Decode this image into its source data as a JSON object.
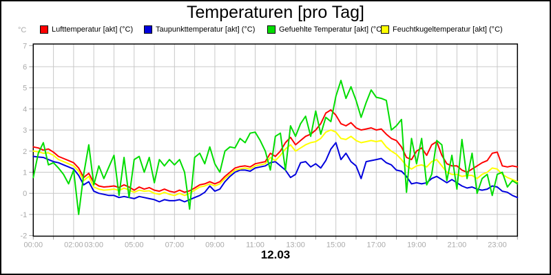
{
  "header": {
    "title": "Temperaturen [pro Tag]"
  },
  "legend": {
    "items": [
      {
        "label": "Lufttemperatur [akt] (°C)",
        "color": "#ff0000"
      },
      {
        "label": "Taupunkttemperatur [akt] (°C)",
        "color": "#0000dd"
      },
      {
        "label": "Gefuehlte Temperatur [akt] (°C)",
        "color": "#00dd00"
      },
      {
        "label": "Feuchtkugeltemperatur [akt] (°C)",
        "color": "#ffff00"
      }
    ]
  },
  "axes": {
    "unit_label": "°C",
    "date_label": "12.03",
    "y_ticks": [
      7,
      6,
      5,
      4,
      3,
      2,
      1,
      0,
      -1,
      -2
    ],
    "x_tick_labels": [
      {
        "hour": 0,
        "label": "00:00"
      },
      {
        "hour": 2,
        "label": "02:00"
      },
      {
        "hour": 3,
        "label": "03:00"
      },
      {
        "hour": 5,
        "label": "05:00"
      },
      {
        "hour": 7,
        "label": "07:00"
      },
      {
        "hour": 9,
        "label": "09:00"
      },
      {
        "hour": 11,
        "label": "11:00"
      },
      {
        "hour": 13,
        "label": "13:00"
      },
      {
        "hour": 15,
        "label": "15:00"
      },
      {
        "hour": 17,
        "label": "17:00"
      },
      {
        "hour": 19,
        "label": "19:00"
      },
      {
        "hour": 21,
        "label": "21:00"
      },
      {
        "hour": 23,
        "label": "23:00"
      }
    ],
    "grid_color": "#c8c8c8",
    "tick_color": "#a0a0a0",
    "label_color": "#a9a9a9",
    "border_color": "#000000"
  },
  "chart_data": {
    "type": "line",
    "title": "Temperaturen [pro Tag]",
    "xlabel": "12.03",
    "ylabel": "°C",
    "xlim_hours": [
      0,
      24
    ],
    "ylim": [
      -2,
      7
    ],
    "grid": true,
    "legend_position": "top",
    "x_start_hour": 0,
    "x_step_hours": 0.25,
    "series": [
      {
        "name": "Lufttemperatur [akt] (°C)",
        "color": "#ff0000",
        "values": [
          2.2,
          2.15,
          2.05,
          2.1,
          1.95,
          1.75,
          1.65,
          1.55,
          1.45,
          1.2,
          0.75,
          0.95,
          0.5,
          0.35,
          0.3,
          0.32,
          0.35,
          0.28,
          0.4,
          0.3,
          0.15,
          0.3,
          0.2,
          0.27,
          0.15,
          0.1,
          0.2,
          0.1,
          0.05,
          0.15,
          0.05,
          0.12,
          0.25,
          0.4,
          0.45,
          0.55,
          0.45,
          0.55,
          0.8,
          1.0,
          1.2,
          1.27,
          1.3,
          1.25,
          1.4,
          1.45,
          1.5,
          1.9,
          1.75,
          2.0,
          2.4,
          2.65,
          2.3,
          2.5,
          2.7,
          2.8,
          3.0,
          3.3,
          3.8,
          3.95,
          3.7,
          3.3,
          3.2,
          3.35,
          3.1,
          3.0,
          3.05,
          3.1,
          3.0,
          3.05,
          2.8,
          2.6,
          2.5,
          2.2,
          1.7,
          1.6,
          2.0,
          2.15,
          1.8,
          2.3,
          2.45,
          1.8,
          1.4,
          1.3,
          1.3,
          1.1,
          1.0,
          1.15,
          1.3,
          1.45,
          1.55,
          1.9,
          1.95,
          1.3,
          1.25,
          1.3,
          1.25
        ]
      },
      {
        "name": "Taupunkttemperatur [akt] (°C)",
        "color": "#0000dd",
        "values": [
          1.75,
          1.72,
          1.7,
          1.6,
          1.5,
          1.45,
          1.35,
          1.25,
          1.15,
          0.85,
          0.4,
          0.55,
          0.1,
          0.0,
          -0.05,
          -0.1,
          -0.1,
          -0.2,
          -0.15,
          -0.2,
          -0.25,
          -0.15,
          -0.2,
          -0.25,
          -0.3,
          -0.4,
          -0.3,
          -0.35,
          -0.35,
          -0.3,
          -0.4,
          -0.3,
          -0.2,
          -0.1,
          0.05,
          0.35,
          0.1,
          0.2,
          0.55,
          0.8,
          1.0,
          1.1,
          1.1,
          1.05,
          1.2,
          1.25,
          1.3,
          1.45,
          1.5,
          1.3,
          1.1,
          0.75,
          0.9,
          1.45,
          1.5,
          1.25,
          1.4,
          1.2,
          1.55,
          2.1,
          2.4,
          1.6,
          1.9,
          1.5,
          1.3,
          0.7,
          1.5,
          1.55,
          1.6,
          1.65,
          1.45,
          1.35,
          1.1,
          1.05,
          0.8,
          0.45,
          0.5,
          0.45,
          0.5,
          0.7,
          0.8,
          0.65,
          0.5,
          0.65,
          0.5,
          0.35,
          0.25,
          0.3,
          0.2,
          0.15,
          0.2,
          0.35,
          0.3,
          0.1,
          0.05,
          -0.1,
          -0.2
        ]
      },
      {
        "name": "Feuchtkugeltemperatur [akt] (°C)",
        "color": "#ffff00",
        "values": [
          2.0,
          1.97,
          1.9,
          1.92,
          1.8,
          1.6,
          1.5,
          1.4,
          1.3,
          1.05,
          0.6,
          0.8,
          0.3,
          0.2,
          0.15,
          0.17,
          0.2,
          0.13,
          0.25,
          0.15,
          0.05,
          0.15,
          0.1,
          0.12,
          0.0,
          -0.05,
          0.05,
          -0.05,
          -0.1,
          0.0,
          -0.1,
          0.0,
          0.15,
          0.3,
          0.35,
          0.45,
          0.35,
          0.45,
          0.7,
          0.9,
          1.1,
          1.15,
          1.2,
          1.15,
          1.3,
          1.35,
          1.4,
          1.7,
          1.55,
          1.8,
          2.1,
          2.3,
          2.0,
          2.15,
          2.3,
          2.4,
          2.45,
          2.6,
          2.9,
          3.0,
          2.9,
          2.6,
          2.55,
          2.7,
          2.5,
          2.4,
          2.45,
          2.5,
          2.45,
          2.5,
          2.2,
          2.0,
          1.85,
          1.6,
          1.3,
          1.15,
          1.3,
          1.35,
          1.25,
          1.5,
          1.6,
          1.3,
          1.0,
          0.9,
          0.9,
          0.8,
          0.85,
          0.85,
          0.7,
          0.9,
          1.0,
          1.2,
          1.15,
          0.9,
          0.75,
          0.65,
          0.55
        ]
      },
      {
        "name": "Gefuehlte Temperatur [akt] (°C)",
        "color": "#00dd00",
        "values": [
          0.75,
          1.9,
          2.4,
          1.35,
          1.45,
          1.2,
          0.9,
          0.45,
          1.1,
          -1.0,
          0.9,
          2.3,
          0.4,
          1.3,
          0.7,
          1.25,
          1.8,
          -0.1,
          1.7,
          -0.2,
          1.6,
          1.75,
          1.0,
          1.7,
          0.5,
          1.6,
          1.3,
          1.6,
          1.35,
          1.6,
          1.0,
          -0.75,
          1.7,
          1.9,
          1.4,
          2.2,
          1.4,
          1.0,
          2.0,
          2.2,
          2.15,
          2.6,
          2.4,
          2.85,
          2.9,
          2.5,
          2.0,
          1.1,
          2.7,
          2.85,
          1.1,
          3.2,
          2.7,
          3.3,
          3.65,
          2.7,
          3.9,
          2.8,
          3.6,
          3.4,
          4.6,
          5.35,
          4.5,
          5.05,
          4.4,
          3.6,
          4.3,
          4.9,
          4.55,
          4.5,
          4.4,
          3.0,
          3.2,
          3.5,
          0.05,
          2.6,
          1.4,
          2.6,
          0.4,
          0.9,
          2.5,
          2.3,
          0.6,
          1.8,
          0.2,
          2.55,
          0.7,
          1.9,
          0.0,
          0.7,
          0.9,
          -0.1,
          0.9,
          1.0,
          0.3,
          0.6,
          0.45
        ]
      }
    ]
  }
}
